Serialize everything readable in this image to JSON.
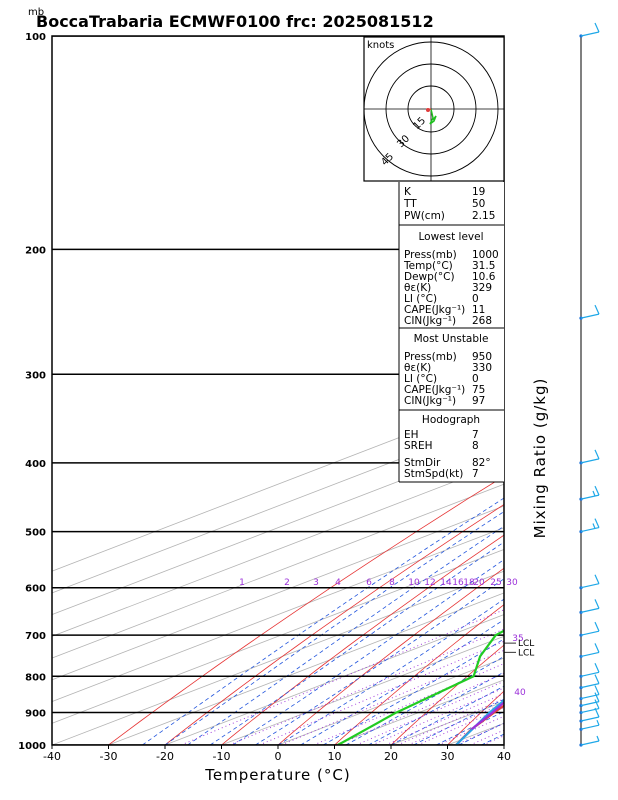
{
  "header": {
    "pressure_unit": "mb",
    "title": "BoccaTrabaria ECMWF0100 frc: 2025081512"
  },
  "chart_data": {
    "type": "line",
    "title": "BoccaTrabaria ECMWF0100 frc: 2025081512",
    "xlabel": "Temperature (°C)",
    "ylabel": "mb",
    "right_label": "Mixing Ratio (g/kg)",
    "pressure_ticks": [
      100,
      200,
      300,
      400,
      500,
      600,
      700,
      800,
      900,
      1000
    ],
    "pressure_range": [
      100,
      1000
    ],
    "pressure_scale": "log",
    "temperature_ticks": [
      -40,
      -30,
      -20,
      -10,
      0,
      10,
      20,
      30,
      40
    ],
    "temperature_range": [
      -40,
      40
    ],
    "skew": true,
    "mixing_ratio_labels": [
      "1",
      "2",
      "3",
      "4",
      "6",
      "8",
      "10",
      "12",
      "14",
      "16",
      "18",
      "20",
      "25",
      "30",
      "35",
      "40"
    ],
    "series": [
      {
        "name": "Temperature",
        "color": "#e03c3c",
        "points": [
          [
            1000,
            31.5
          ],
          [
            950,
            27.0
          ],
          [
            900,
            23.3
          ],
          [
            850,
            19.7
          ],
          [
            800,
            16.4
          ],
          [
            700,
            9.6
          ],
          [
            600,
            2.4
          ],
          [
            500,
            -6.3
          ],
          [
            400,
            -17.8
          ],
          [
            300,
            -32.0
          ],
          [
            250,
            -41.5
          ],
          [
            200,
            -52.5
          ],
          [
            150,
            -59.0
          ],
          [
            100,
            -65.0
          ]
        ]
      },
      {
        "name": "Dewpoint",
        "color": "#22cc22",
        "points": [
          [
            1000,
            10.6
          ],
          [
            900,
            6.0
          ],
          [
            800,
            3.0
          ],
          [
            750,
            -5.0
          ],
          [
            700,
            -12.0
          ],
          [
            600,
            -18.0
          ],
          [
            500,
            -22.0
          ],
          [
            400,
            -30.0
          ],
          [
            300,
            -46.0
          ],
          [
            250,
            -57.0
          ],
          [
            200,
            -65.0
          ],
          [
            150,
            -77.0
          ],
          [
            100,
            -90.0
          ]
        ]
      },
      {
        "name": "Parcel (surface)",
        "color": "#2aa3e6",
        "points": [
          [
            1000,
            31.5
          ],
          [
            900,
            22.5
          ],
          [
            800,
            13.5
          ],
          [
            750,
            10.0
          ],
          [
            700,
            7.6
          ],
          [
            600,
            1.0
          ],
          [
            500,
            -7.0
          ],
          [
            400,
            -18.8
          ],
          [
            300,
            -35.0
          ],
          [
            250,
            -45.5
          ],
          [
            200,
            -57.5
          ],
          [
            150,
            -72.0
          ],
          [
            120,
            -80.0
          ]
        ]
      },
      {
        "name": "Parcel (most unstable)",
        "color": "#9b30d9",
        "points": [
          [
            950,
            27.0
          ],
          [
            900,
            23.0
          ],
          [
            850,
            18.5
          ],
          [
            800,
            15.3
          ],
          [
            750,
            11.8
          ],
          [
            700,
            8.5
          ],
          [
            600,
            2.0
          ],
          [
            500,
            -6.0
          ],
          [
            400,
            -17.8
          ],
          [
            300,
            -33.0
          ],
          [
            250,
            -43.0
          ],
          [
            200,
            -54.8
          ],
          [
            150,
            -68.0
          ],
          [
            100,
            -80.0
          ]
        ]
      }
    ],
    "lcl_labels": [
      "LCL",
      "LCL"
    ],
    "wind_barbs": [
      {
        "pressure": 100,
        "speed_kt": 10
      },
      {
        "pressure": 250,
        "speed_kt": 10
      },
      {
        "pressure": 400,
        "speed_kt": 10
      },
      {
        "pressure": 450,
        "speed_kt": 15
      },
      {
        "pressure": 500,
        "speed_kt": 15
      },
      {
        "pressure": 600,
        "speed_kt": 10
      },
      {
        "pressure": 650,
        "speed_kt": 10
      },
      {
        "pressure": 700,
        "speed_kt": 10
      },
      {
        "pressure": 750,
        "speed_kt": 10
      },
      {
        "pressure": 800,
        "speed_kt": 10
      },
      {
        "pressure": 830,
        "speed_kt": 10
      },
      {
        "pressure": 860,
        "speed_kt": 10
      },
      {
        "pressure": 880,
        "speed_kt": 10
      },
      {
        "pressure": 900,
        "speed_kt": 10
      },
      {
        "pressure": 925,
        "speed_kt": 10
      },
      {
        "pressure": 950,
        "speed_kt": 5
      },
      {
        "pressure": 1000,
        "speed_kt": 5
      }
    ]
  },
  "hodograph": {
    "units_label": "knots",
    "ring_labels": [
      "15",
      "30",
      "45"
    ]
  },
  "indices": {
    "top": [
      {
        "label": "K",
        "value": "19"
      },
      {
        "label": "TT",
        "value": "50"
      },
      {
        "label": "PW(cm)",
        "value": "2.15"
      }
    ],
    "lowest_level": {
      "header": "Lowest level",
      "rows": [
        {
          "label": "Press(mb)",
          "value": "1000"
        },
        {
          "label": "Temp(°C)",
          "value": "31.5"
        },
        {
          "label": "Dewp(°C)",
          "value": "10.6"
        },
        {
          "label": "θε(K)",
          "value": "329"
        },
        {
          "label": "LI (°C)",
          "value": "0"
        },
        {
          "label": "CAPE(Jkg⁻¹)",
          "value": "11"
        },
        {
          "label": "CIN(Jkg⁻¹)",
          "value": "268"
        }
      ]
    },
    "most_unstable": {
      "header": "Most Unstable",
      "rows": [
        {
          "label": "Press(mb)",
          "value": "950"
        },
        {
          "label": "θε(K)",
          "value": "330"
        },
        {
          "label": "LI (°C)",
          "value": "0"
        },
        {
          "label": "CAPE(Jkg⁻¹)",
          "value": "75"
        },
        {
          "label": "CIN(Jkg⁻¹)",
          "value": "97"
        }
      ]
    },
    "hodograph_info": {
      "header": "Hodograph",
      "rows": [
        {
          "label": "EH",
          "value": "7"
        },
        {
          "label": "SREH",
          "value": "8"
        }
      ],
      "storm_rows": [
        {
          "label": "StmDir",
          "value": "82°"
        },
        {
          "label": "StmSpd(kt)",
          "value": "7"
        }
      ]
    }
  }
}
